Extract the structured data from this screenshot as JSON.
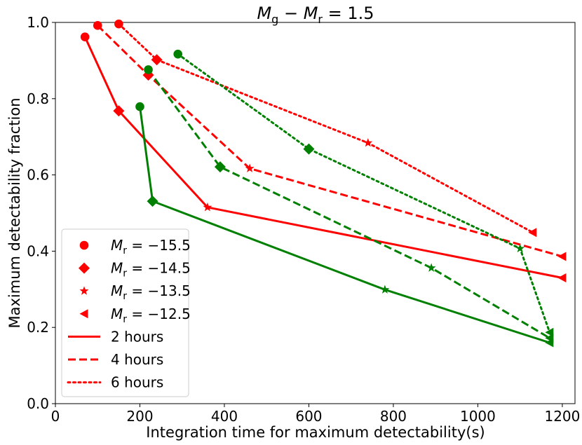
{
  "chart_data": {
    "type": "line",
    "title": "M_g - M_r = 1.5",
    "title_parts": {
      "m1": "M",
      "s1": "g",
      "minus": " − ",
      "m2": "M",
      "s2": "r",
      "eq": " = 1.5"
    },
    "xlabel": "Integration time for maximum detectability(s)",
    "ylabel": "Maximum detectability fraction",
    "xlim": [
      0,
      1230
    ],
    "ylim": [
      0,
      1.0
    ],
    "xticks": [
      0,
      200,
      400,
      600,
      800,
      1000,
      1200
    ],
    "yticks": [
      0.0,
      0.2,
      0.4,
      0.6,
      0.8,
      1.0
    ],
    "xtick_labels": [
      "0",
      "200",
      "400",
      "600",
      "800",
      "1000",
      "1200"
    ],
    "ytick_labels": [
      "0.0",
      "0.2",
      "0.4",
      "0.6",
      "0.8",
      "1.0"
    ],
    "marker_order": [
      "circle",
      "diamond",
      "star",
      "triangle-left"
    ],
    "series": [
      {
        "name": "red 2 hours",
        "color": "#ff0000",
        "linestyle": "solid",
        "x": [
          70,
          150,
          360,
          1200
        ],
        "y": [
          0.962,
          0.768,
          0.515,
          0.33
        ]
      },
      {
        "name": "red 4 hours",
        "color": "#ff0000",
        "linestyle": "dashed",
        "x": [
          100,
          220,
          460,
          1200
        ],
        "y": [
          0.992,
          0.862,
          0.617,
          0.386
        ]
      },
      {
        "name": "red 6 hours",
        "color": "#ff0000",
        "linestyle": "dotted",
        "x": [
          150,
          240,
          740,
          1130
        ],
        "y": [
          0.996,
          0.902,
          0.684,
          0.449
        ]
      },
      {
        "name": "green 2 hours",
        "color": "#008000",
        "linestyle": "solid",
        "x": [
          200,
          230,
          780,
          1170
        ],
        "y": [
          0.779,
          0.531,
          0.299,
          0.16
        ]
      },
      {
        "name": "green 4 hours",
        "color": "#008000",
        "linestyle": "dashed",
        "x": [
          220,
          390,
          890,
          1170
        ],
        "y": [
          0.876,
          0.621,
          0.356,
          0.172
        ]
      },
      {
        "name": "green 6 hours",
        "color": "#008000",
        "linestyle": "dotted",
        "x": [
          290,
          600,
          1100,
          1170
        ],
        "y": [
          0.917,
          0.668,
          0.407,
          0.187
        ]
      }
    ],
    "legend": {
      "position": "lower-left",
      "markers": [
        {
          "prefix": "M",
          "sub": "r",
          "rest": " = −15.5",
          "marker": "circle"
        },
        {
          "prefix": "M",
          "sub": "r",
          "rest": " = −14.5",
          "marker": "diamond"
        },
        {
          "prefix": "M",
          "sub": "r",
          "rest": " = −13.5",
          "marker": "star"
        },
        {
          "prefix": "M",
          "sub": "r",
          "rest": " = −12.5",
          "marker": "triangle-left"
        }
      ],
      "lines": [
        {
          "label": "2 hours",
          "linestyle": "solid"
        },
        {
          "label": "4 hours",
          "linestyle": "dashed"
        },
        {
          "label": "6 hours",
          "linestyle": "dotted"
        }
      ],
      "color": "#ff0000"
    }
  }
}
